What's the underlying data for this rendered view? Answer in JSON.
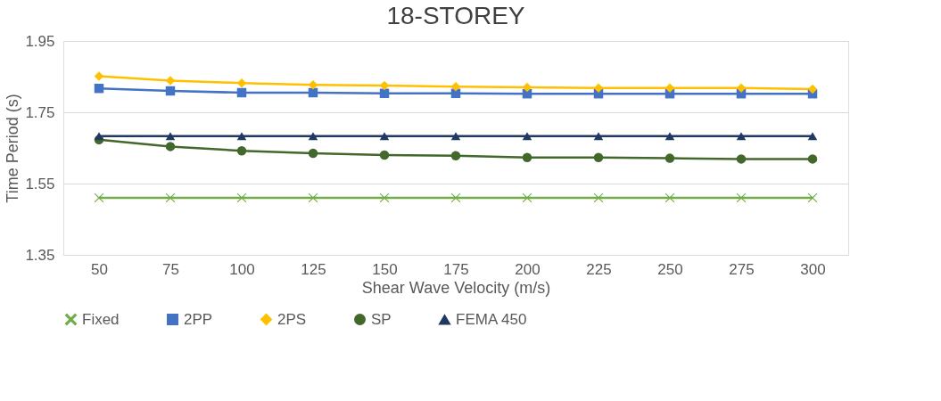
{
  "chart_data": {
    "type": "line",
    "title": "18-STOREY",
    "xlabel": "Shear Wave Velocity (m/s)",
    "ylabel": "Time Period (s)",
    "categories": [
      "50",
      "75",
      "100",
      "125",
      "150",
      "175",
      "200",
      "225",
      "250",
      "275",
      "300"
    ],
    "ylim": [
      1.35,
      1.95
    ],
    "yticks": [
      1.35,
      1.55,
      1.75,
      1.95
    ],
    "grid": "y",
    "legend": "bottom",
    "series": [
      {
        "name": "Fixed",
        "color": "#70ad47",
        "marker": "cross",
        "values": [
          1.51,
          1.51,
          1.51,
          1.51,
          1.51,
          1.51,
          1.51,
          1.51,
          1.51,
          1.51,
          1.51
        ]
      },
      {
        "name": "2PP",
        "color": "#4472c4",
        "marker": "square",
        "values": [
          1.817,
          1.81,
          1.805,
          1.805,
          1.803,
          1.803,
          1.802,
          1.802,
          1.802,
          1.802,
          1.802
        ]
      },
      {
        "name": "2PS",
        "color": "#ffc000",
        "marker": "diamond",
        "values": [
          1.851,
          1.839,
          1.832,
          1.827,
          1.825,
          1.822,
          1.82,
          1.818,
          1.818,
          1.818,
          1.815
        ]
      },
      {
        "name": "SP",
        "color": "#43682b",
        "marker": "circle",
        "values": [
          1.673,
          1.654,
          1.642,
          1.635,
          1.63,
          1.628,
          1.623,
          1.623,
          1.621,
          1.619,
          1.619
        ]
      },
      {
        "name": "FEMA 450",
        "color": "#203864",
        "marker": "triangle",
        "values": [
          1.683,
          1.683,
          1.683,
          1.683,
          1.683,
          1.683,
          1.683,
          1.683,
          1.683,
          1.683,
          1.683
        ]
      }
    ]
  }
}
